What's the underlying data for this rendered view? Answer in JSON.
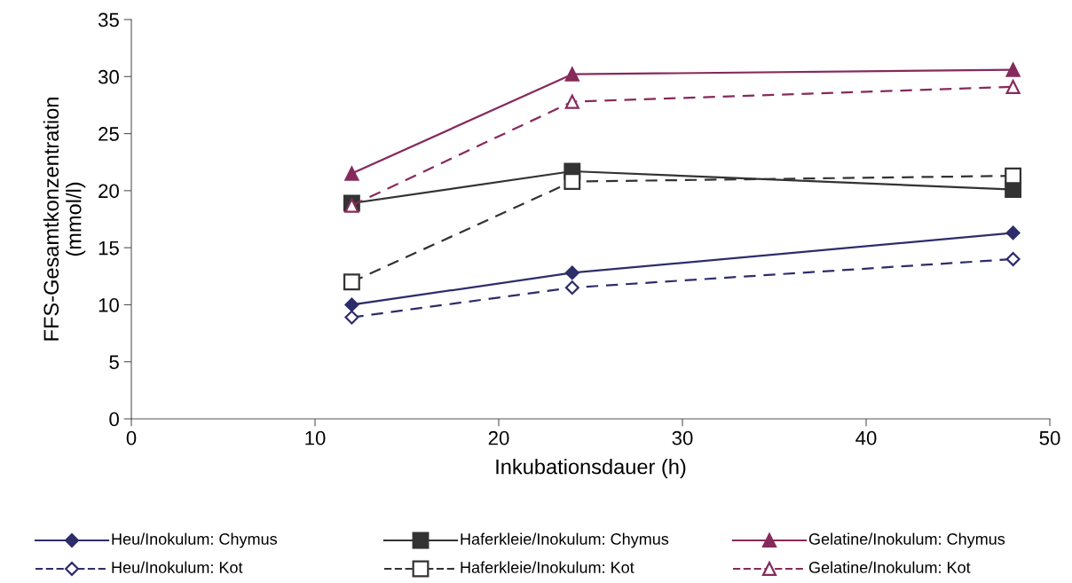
{
  "chart_data": {
    "type": "line",
    "xlabel": "Inkubationsdauer (h)",
    "ylabel": "FFS-Gesamtkonzentration\n(mmol/l)",
    "x": [
      12,
      24,
      48
    ],
    "xlim": [
      0,
      50
    ],
    "xticks": [
      0,
      10,
      20,
      30,
      40,
      50
    ],
    "ylim": [
      0,
      35
    ],
    "yticks": [
      0,
      5,
      10,
      15,
      20,
      25,
      30,
      35
    ],
    "grid": false,
    "legend": "bottom",
    "series": [
      {
        "name": "Heu/Inokulum: Chymus",
        "color": "#2e2d6b",
        "values": [
          10.0,
          12.8,
          16.3
        ],
        "marker": "diamond",
        "line_style": "solid"
      },
      {
        "name": "Heu/Inokulum: Kot",
        "color": "#2e2d6b",
        "values": [
          8.9,
          11.5,
          14.0
        ],
        "marker": "diamond",
        "line_style": "dashed"
      },
      {
        "name": "Haferkleie/Inokulum: Chymus",
        "color": "#333333",
        "values": [
          18.9,
          21.7,
          20.1
        ],
        "marker": "square",
        "line_style": "solid"
      },
      {
        "name": "Haferkleie/Inokulum: Kot",
        "color": "#333333",
        "values": [
          12.0,
          20.8,
          21.3
        ],
        "marker": "square",
        "line_style": "dashed"
      },
      {
        "name": "Gelatine/Inokulum: Chymus",
        "color": "#862a5c",
        "values": [
          21.5,
          30.2,
          30.6
        ],
        "marker": "triangle",
        "line_style": "solid"
      },
      {
        "name": "Gelatine/Inokulum: Kot",
        "color": "#862a5c",
        "values": [
          18.7,
          27.8,
          29.1
        ],
        "marker": "triangle",
        "line_style": "dashed"
      }
    ]
  }
}
